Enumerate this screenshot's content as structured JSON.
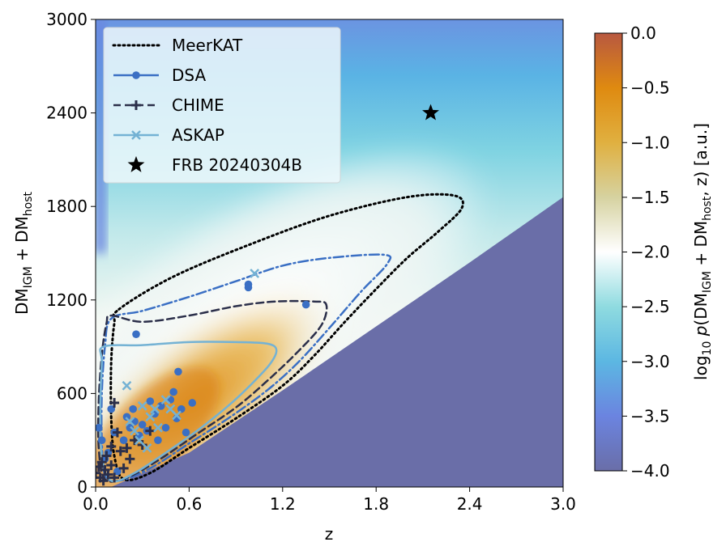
{
  "chart_data": {
    "type": "heatmap",
    "xlabel": "z",
    "ylabel_main": "DM",
    "ylabel_sub1": "IGM",
    "ylabel_mid": " + DM",
    "ylabel_sub2": "host",
    "xlim": [
      0.0,
      3.0
    ],
    "ylim": [
      0,
      3000
    ],
    "xticks": [
      {
        "value": 0.0,
        "label": "0.0"
      },
      {
        "value": 0.6,
        "label": "0.6"
      },
      {
        "value": 1.2,
        "label": "1.2"
      },
      {
        "value": 1.8,
        "label": "1.8"
      },
      {
        "value": 2.4,
        "label": "2.4"
      },
      {
        "value": 3.0,
        "label": "3.0"
      }
    ],
    "yticks": [
      {
        "value": 0,
        "label": "0"
      },
      {
        "value": 600,
        "label": "600"
      },
      {
        "value": 1200,
        "label": "1200"
      },
      {
        "value": 1800,
        "label": "1800"
      },
      {
        "value": 2400,
        "label": "2400"
      },
      {
        "value": 3000,
        "label": "3000"
      }
    ],
    "colorbar": {
      "label_prefix": "log",
      "label_sub": "10",
      "label_p": " p",
      "label_args": "(DM",
      "label_sub_igm": "IGM",
      "label_plus": " + DM",
      "label_sub_host": "host",
      "label_tail": ", z) [a.u.]",
      "range": [
        -4.0,
        0.0
      ],
      "ticks": [
        {
          "value": 0.0,
          "label": "0.0"
        },
        {
          "value": -0.5,
          "label": "−0.5"
        },
        {
          "value": -1.0,
          "label": "−1.0"
        },
        {
          "value": -1.5,
          "label": "−1.5"
        },
        {
          "value": -2.0,
          "label": "−2.0"
        },
        {
          "value": -2.5,
          "label": "−2.5"
        },
        {
          "value": -3.0,
          "label": "−3.0"
        },
        {
          "value": -3.5,
          "label": "−3.5"
        },
        {
          "value": -4.0,
          "label": "−4.0"
        }
      ],
      "colors": [
        "#6a6ea8",
        "#6b84e0",
        "#5cb7e2",
        "#8fdbe0",
        "#ffffff",
        "#d6d2a0",
        "#e0b040",
        "#df8a10",
        "#b85840"
      ]
    },
    "legend": {
      "placement": "upper-left",
      "entries": [
        {
          "label": "MeerKAT",
          "color": "#000000",
          "style": "dotted"
        },
        {
          "label": "DSA",
          "color": "#3a6fc4",
          "style": "solid-circle"
        },
        {
          "label": "CHIME",
          "color": "#2b2f4a",
          "style": "dashed-plus"
        },
        {
          "label": "ASKAP",
          "color": "#74b2d4",
          "style": "solid-x"
        },
        {
          "label": "FRB 20240304B",
          "color": "#000000",
          "style": "star"
        }
      ]
    },
    "series": [
      {
        "name": "MeerKAT",
        "contour": [
          [
            0.15,
            1140
          ],
          [
            0.5,
            1350
          ],
          [
            1.0,
            1560
          ],
          [
            1.5,
            1740
          ],
          [
            2.0,
            1860
          ],
          [
            2.3,
            1870
          ],
          [
            2.35,
            1790
          ],
          [
            2.2,
            1640
          ],
          [
            2.0,
            1470
          ],
          [
            1.8,
            1270
          ],
          [
            1.6,
            1060
          ],
          [
            1.4,
            840
          ],
          [
            1.2,
            650
          ],
          [
            0.9,
            440
          ],
          [
            0.6,
            250
          ],
          [
            0.35,
            90
          ],
          [
            0.18,
            50
          ],
          [
            0.12,
            200
          ],
          [
            0.1,
            450
          ],
          [
            0.1,
            800
          ],
          [
            0.12,
            1050
          ]
        ],
        "points": []
      },
      {
        "name": "DSA",
        "contour": [
          [
            0.1,
            1080
          ],
          [
            0.3,
            1130
          ],
          [
            0.6,
            1220
          ],
          [
            0.9,
            1320
          ],
          [
            1.2,
            1420
          ],
          [
            1.5,
            1470
          ],
          [
            1.85,
            1490
          ],
          [
            1.87,
            1430
          ],
          [
            1.7,
            1250
          ],
          [
            1.5,
            1020
          ],
          [
            1.3,
            800
          ],
          [
            1.1,
            620
          ],
          [
            0.85,
            440
          ],
          [
            0.6,
            280
          ],
          [
            0.35,
            120
          ],
          [
            0.15,
            40
          ],
          [
            0.06,
            80
          ],
          [
            0.04,
            300
          ],
          [
            0.04,
            600
          ],
          [
            0.06,
            900
          ]
        ],
        "points": [
          [
            0.02,
            380
          ],
          [
            0.04,
            300
          ],
          [
            0.06,
            180
          ],
          [
            0.08,
            220
          ],
          [
            0.1,
            500
          ],
          [
            0.12,
            350
          ],
          [
            0.14,
            100
          ],
          [
            0.18,
            300
          ],
          [
            0.2,
            450
          ],
          [
            0.22,
            380
          ],
          [
            0.24,
            500
          ],
          [
            0.25,
            420
          ],
          [
            0.26,
            980
          ],
          [
            0.28,
            330
          ],
          [
            0.3,
            400
          ],
          [
            0.33,
            360
          ],
          [
            0.35,
            550
          ],
          [
            0.38,
            470
          ],
          [
            0.4,
            300
          ],
          [
            0.42,
            520
          ],
          [
            0.45,
            380
          ],
          [
            0.48,
            560
          ],
          [
            0.5,
            610
          ],
          [
            0.52,
            440
          ],
          [
            0.53,
            740
          ],
          [
            0.55,
            500
          ],
          [
            0.58,
            350
          ],
          [
            0.62,
            540
          ],
          [
            0.98,
            1280
          ],
          [
            0.98,
            1300
          ],
          [
            1.35,
            1170
          ]
        ]
      },
      {
        "name": "CHIME",
        "contour": [
          [
            0.1,
            1100
          ],
          [
            0.3,
            1060
          ],
          [
            0.6,
            1100
          ],
          [
            0.9,
            1160
          ],
          [
            1.15,
            1190
          ],
          [
            1.4,
            1190
          ],
          [
            1.48,
            1170
          ],
          [
            1.45,
            1040
          ],
          [
            1.3,
            870
          ],
          [
            1.1,
            680
          ],
          [
            0.9,
            510
          ],
          [
            0.65,
            340
          ],
          [
            0.4,
            170
          ],
          [
            0.2,
            60
          ],
          [
            0.06,
            50
          ],
          [
            0.02,
            250
          ],
          [
            0.02,
            550
          ],
          [
            0.04,
            850
          ],
          [
            0.07,
            1050
          ]
        ],
        "points": [
          [
            0.0,
            90
          ],
          [
            0.02,
            130
          ],
          [
            0.03,
            60
          ],
          [
            0.04,
            160
          ],
          [
            0.05,
            40
          ],
          [
            0.06,
            110
          ],
          [
            0.07,
            200
          ],
          [
            0.08,
            80
          ],
          [
            0.1,
            140
          ],
          [
            0.1,
            260
          ],
          [
            0.12,
            60
          ],
          [
            0.12,
            540
          ],
          [
            0.14,
            350
          ],
          [
            0.16,
            230
          ],
          [
            0.18,
            120
          ],
          [
            0.2,
            250
          ],
          [
            0.22,
            180
          ],
          [
            0.25,
            300
          ],
          [
            0.3,
            270
          ],
          [
            0.35,
            360
          ]
        ]
      },
      {
        "name": "ASKAP",
        "contour": [
          [
            0.05,
            900
          ],
          [
            0.3,
            910
          ],
          [
            0.6,
            930
          ],
          [
            0.9,
            930
          ],
          [
            1.1,
            920
          ],
          [
            1.16,
            880
          ],
          [
            1.12,
            790
          ],
          [
            1.0,
            660
          ],
          [
            0.85,
            520
          ],
          [
            0.65,
            360
          ],
          [
            0.45,
            220
          ],
          [
            0.25,
            90
          ],
          [
            0.1,
            40
          ],
          [
            0.04,
            200
          ],
          [
            0.03,
            500
          ],
          [
            0.04,
            800
          ]
        ],
        "points": [
          [
            0.2,
            650
          ],
          [
            0.22,
            420
          ],
          [
            0.25,
            360
          ],
          [
            0.28,
            300
          ],
          [
            0.3,
            520
          ],
          [
            0.33,
            250
          ],
          [
            0.35,
            450
          ],
          [
            0.38,
            500
          ],
          [
            0.4,
            380
          ],
          [
            0.45,
            560
          ],
          [
            0.48,
            500
          ],
          [
            0.52,
            460
          ],
          [
            1.02,
            1370
          ]
        ]
      },
      {
        "name": "FRB 20240304B",
        "contour": [],
        "points": [
          [
            2.15,
            2400
          ]
        ]
      }
    ]
  }
}
